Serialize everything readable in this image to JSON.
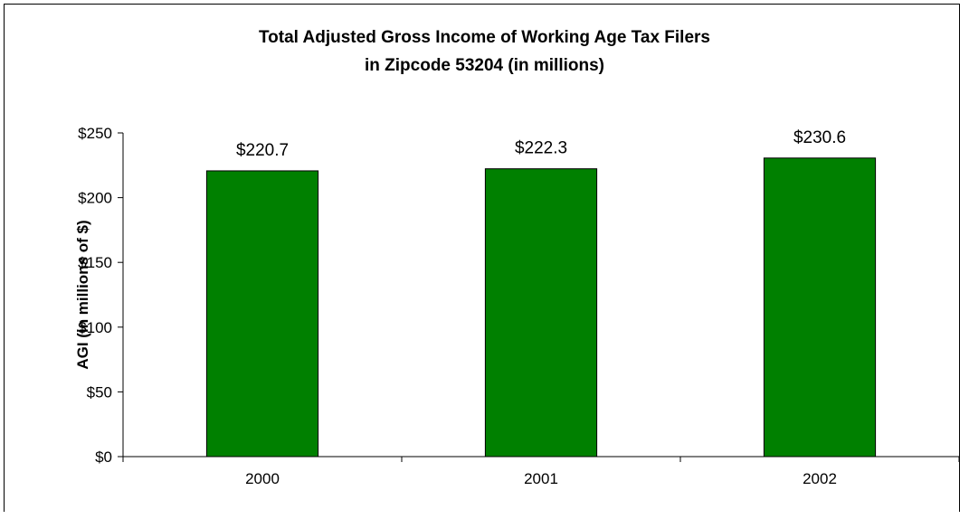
{
  "chart_data": {
    "type": "bar",
    "title": "Total Adjusted Gross Income of Working Age Tax Filers",
    "subtitle": "in Zipcode 53204 (in millions)",
    "xlabel": "",
    "ylabel": "AGI (in millions of $)",
    "categories": [
      "2000",
      "2001",
      "2002"
    ],
    "values": [
      220.7,
      222.3,
      230.6
    ],
    "data_labels": [
      "$220.7",
      "$222.3",
      "$230.6"
    ],
    "ylim": [
      0,
      250
    ],
    "yticks": [
      0,
      50,
      100,
      150,
      200,
      250
    ],
    "ytick_labels": [
      "$0",
      "$50",
      "$100",
      "$150",
      "$200",
      "$250"
    ],
    "grid": false,
    "legend": "none",
    "colors": {
      "bar_fill": "#008000",
      "bar_stroke": "#000000",
      "axis": "#000000"
    }
  }
}
